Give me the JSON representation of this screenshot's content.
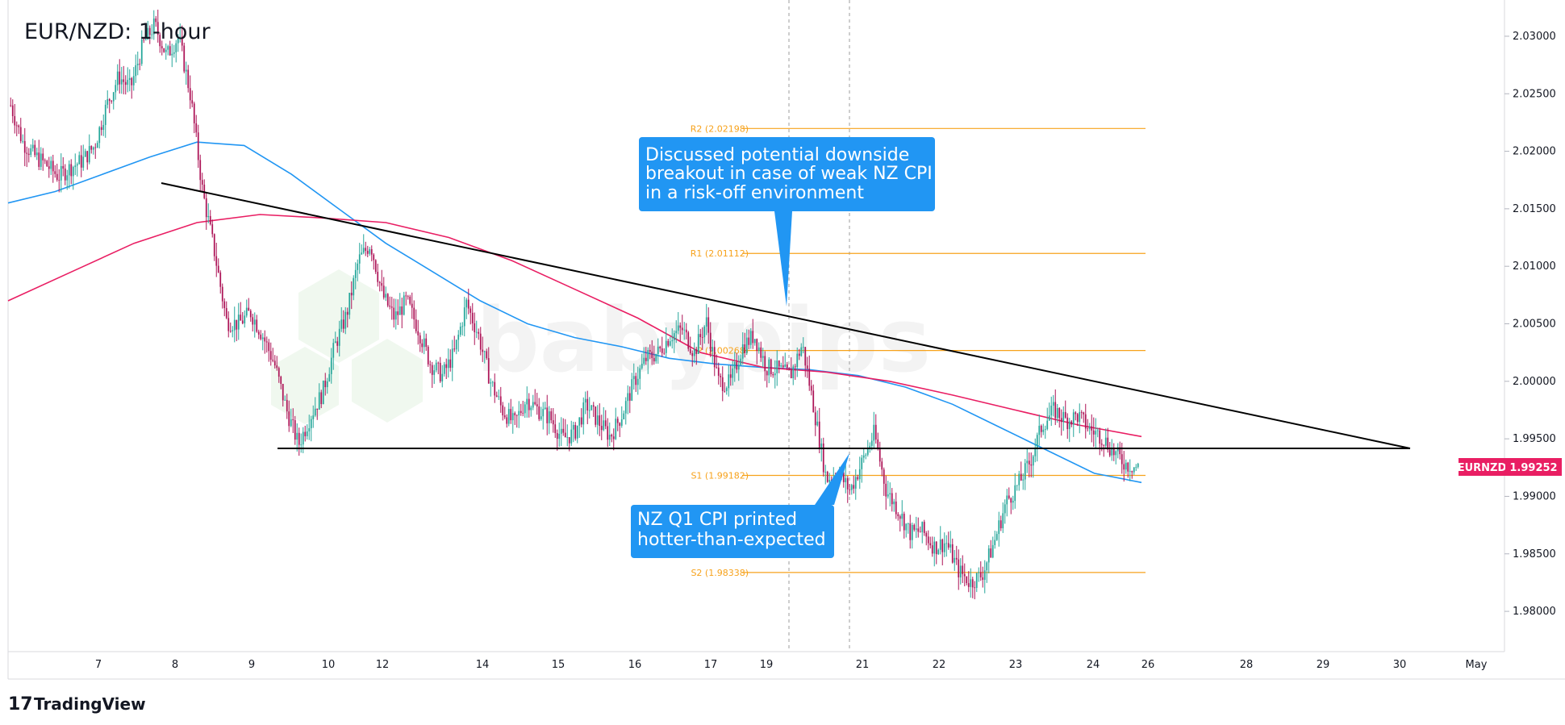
{
  "chart_data": {
    "type": "candlestick",
    "title": "EUR/NZD: 1-hour",
    "symbol_tag": "EURNZD",
    "last_price": "1.99252",
    "y_ticks": [
      "2.03000",
      "2.02500",
      "2.02000",
      "2.01500",
      "2.01000",
      "2.00500",
      "2.00000",
      "1.99500",
      "1.99000",
      "1.98500",
      "1.98000"
    ],
    "ylim": [
      1.9765,
      2.0328
    ],
    "x_ticks": [
      "7",
      "8",
      "9",
      "10",
      "12",
      "14",
      "15",
      "16",
      "17",
      "19",
      "21",
      "22",
      "23",
      "24",
      "26",
      "28",
      "29",
      "30",
      "May"
    ],
    "pivots": [
      {
        "name": "R2",
        "label": "R2 (2.02198)",
        "value": 2.02198
      },
      {
        "name": "R1",
        "label": "R1 (2.01112)",
        "value": 2.01112
      },
      {
        "name": "P",
        "label": "P (2.00268)",
        "value": 2.00268
      },
      {
        "name": "S1",
        "label": "S1 (1.99182)",
        "value": 1.99182
      },
      {
        "name": "S2",
        "label": "S2 (1.98338)",
        "value": 1.98338
      }
    ],
    "support_level": 1.994,
    "trendline": {
      "start_day": "8",
      "start_value": 2.0167,
      "end_day": "30",
      "end_value": 1.9942
    },
    "annotations": [
      {
        "name": "callout-downside",
        "lines": [
          "Discussed potential downside",
          "breakout in case of weak NZ CPI",
          "in a risk-off environment"
        ]
      },
      {
        "name": "callout-cpi",
        "lines": [
          "NZ Q1 CPI printed",
          "hotter-than-expected"
        ]
      }
    ],
    "ohlc_path": [
      2.024,
      2.0208,
      2.0196,
      2.0188,
      2.0178,
      2.0186,
      2.0192,
      2.0205,
      2.024,
      2.0265,
      2.0255,
      2.0292,
      2.031,
      2.0283,
      2.03,
      2.0248,
      2.0165,
      2.0112,
      2.0052,
      2.005,
      2.006,
      2.004,
      2.0015,
      1.9975,
      1.9945,
      1.997,
      1.999,
      2.003,
      2.0058,
      2.0105,
      2.012,
      2.0075,
      2.0055,
      2.007,
      2.0045,
      2.0015,
      2.0005,
      2.0025,
      2.0068,
      2.004,
      2.0,
      1.9975,
      1.9963,
      1.9985,
      1.9975,
      1.9968,
      1.995,
      1.9955,
      1.998,
      1.9965,
      1.9952,
      1.9972,
      2.0,
      2.002,
      2.0025,
      2.004,
      2.0045,
      2.0025,
      2.0052,
      2.0,
      1.9998,
      2.003,
      2.004,
      2.0012,
      2.001,
      2.0005,
      2.0032,
      1.9975,
      1.9915,
      1.992,
      1.9905,
      1.993,
      1.9955,
      1.9905,
      1.9888,
      1.9868,
      1.987,
      1.9856,
      1.986,
      1.9836,
      1.9825,
      1.9832,
      1.986,
      1.9895,
      1.991,
      1.993,
      1.9962,
      1.9975,
      1.9966,
      1.997,
      1.9958,
      1.9952,
      1.9938,
      1.9928,
      1.9925
    ],
    "ma_blue": [
      2.0155,
      2.0165,
      2.018,
      2.0195,
      2.0208,
      2.0205,
      2.018,
      2.015,
      2.012,
      2.0095,
      2.007,
      2.005,
      2.0038,
      2.003,
      2.002,
      2.0015,
      2.0012,
      2.001,
      2.0005,
      1.9995,
      1.998,
      1.996,
      1.994,
      1.992,
      1.9912
    ],
    "ma_pink": [
      2.007,
      2.0095,
      2.012,
      2.0138,
      2.0145,
      2.0142,
      2.0138,
      2.0125,
      2.0105,
      2.008,
      2.0055,
      2.0025,
      2.0012,
      2.0008,
      2.0,
      1.9988,
      1.9975,
      1.9962,
      1.9952
    ]
  },
  "brand": {
    "name": "TradingView",
    "logo_text": "17"
  },
  "watermark": "babypips",
  "colors": {
    "up": "#26a69a",
    "down": "#ef5350",
    "up_fill": "#26a69a",
    "down_fill": "#ad1457",
    "blue_ma": "#2196f3",
    "pink_ma": "#e91e63",
    "pivot": "#f7a21b",
    "callout": "#2196f3"
  }
}
